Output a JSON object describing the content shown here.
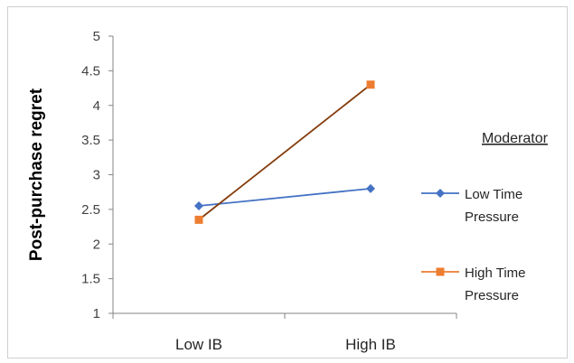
{
  "chart_data": {
    "type": "line",
    "categories": [
      "Low IB",
      "High IB"
    ],
    "ylabel": "Post-purchase regret",
    "xlabel": "",
    "ylim": [
      1,
      5
    ],
    "yticks": [
      "1",
      "1.5",
      "2",
      "2.5",
      "3",
      "3.5",
      "4",
      "4.5",
      "5"
    ],
    "ytick_values": [
      1,
      1.5,
      2,
      2.5,
      3,
      3.5,
      4,
      4.5,
      5
    ],
    "legend_title": "Moderator",
    "legend_position": "right",
    "grid": false,
    "series": [
      {
        "name_lines": [
          "Low Time",
          "Pressure"
        ],
        "values": [
          2.55,
          2.8
        ],
        "color": "#4472C4",
        "marker": "diamond"
      },
      {
        "name_lines": [
          "High Time",
          "Pressure"
        ],
        "values": [
          2.35,
          4.3
        ],
        "color": "#ED7D31",
        "line_color": "#843C0C",
        "marker": "square"
      }
    ]
  }
}
